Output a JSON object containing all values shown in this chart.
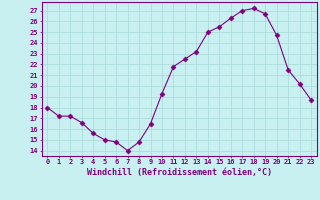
{
  "x": [
    0,
    1,
    2,
    3,
    4,
    5,
    6,
    7,
    8,
    9,
    10,
    11,
    12,
    13,
    14,
    15,
    16,
    17,
    18,
    19,
    20,
    21,
    22,
    23
  ],
  "y": [
    18,
    17.2,
    17.2,
    16.6,
    15.6,
    15.0,
    14.8,
    14.0,
    14.8,
    16.5,
    19.3,
    21.8,
    22.5,
    23.2,
    25.0,
    25.5,
    26.3,
    27.0,
    27.2,
    26.7,
    24.7,
    21.5,
    20.2,
    18.7
  ],
  "line_color": "#800080",
  "marker": "D",
  "marker_size": 2.5,
  "bg_color": "#c8f0f0",
  "grid_color": "#a8d8d8",
  "ylabel_ticks": [
    14,
    15,
    16,
    17,
    18,
    19,
    20,
    21,
    22,
    23,
    24,
    25,
    26,
    27
  ],
  "ylim": [
    13.5,
    27.8
  ],
  "xlim": [
    -0.5,
    23.5
  ],
  "xlabel": "Windchill (Refroidissement éolien,°C)",
  "tick_color": "#800080",
  "tick_fontsize": 5.0,
  "xlabel_fontsize": 6.0
}
